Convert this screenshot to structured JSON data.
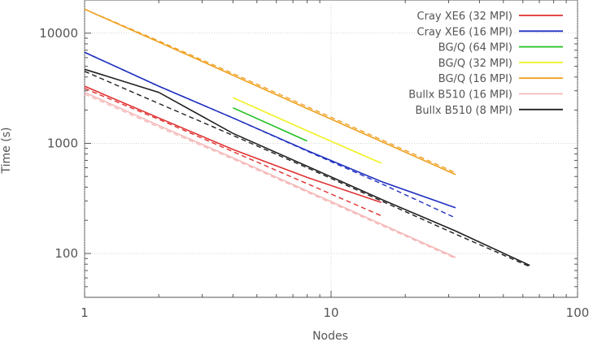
{
  "chart_data": {
    "type": "line",
    "xlabel": "Nodes",
    "ylabel": "Time (s)",
    "xscale": "log",
    "yscale": "log",
    "xlim": [
      1,
      100
    ],
    "ylim": [
      40,
      20000
    ],
    "xticks": [
      {
        "value": 1,
        "label": "1"
      },
      {
        "value": 10,
        "label": "10"
      },
      {
        "value": 100,
        "label": "100"
      }
    ],
    "yticks": [
      {
        "value": 100,
        "label": "100"
      },
      {
        "value": 1000,
        "label": "1000"
      },
      {
        "value": 10000,
        "label": "10000"
      }
    ],
    "grid": true,
    "legend_position": "top-right",
    "series": [
      {
        "name": "Cray XE6 (32 MPI)",
        "color": "#e03030",
        "x": [
          1,
          2,
          4,
          8,
          16
        ],
        "y": [
          3300,
          1700,
          880,
          490,
          290
        ],
        "dashed_y": [
          3150,
          1650,
          840,
          430,
          220
        ]
      },
      {
        "name": "Cray XE6 (16 MPI)",
        "color": "#2030c0",
        "x": [
          1,
          2,
          4,
          8,
          16,
          32
        ],
        "y": [
          6700,
          3300,
          1700,
          860,
          450,
          260
        ],
        "dashed_y": [
          6700,
          3300,
          1700,
          850,
          430,
          210
        ]
      },
      {
        "name": "BG/Q (64 MPI)",
        "color": "#20c020",
        "x": [
          4,
          8
        ],
        "y": [
          2100,
          1050
        ],
        "dashed_y": []
      },
      {
        "name": "BG/Q (32 MPI)",
        "color": "#f0f020",
        "x": [
          4,
          8,
          16
        ],
        "y": [
          2600,
          1300,
          660
        ],
        "dashed_y": []
      },
      {
        "name": "BG/Q (16 MPI)",
        "color": "#f0a020",
        "x": [
          1,
          2,
          4,
          8,
          16,
          32
        ],
        "y": [
          16500,
          8300,
          4150,
          2070,
          1040,
          520
        ],
        "dashed_y": [
          16500,
          8500,
          4300,
          2150,
          1080,
          540
        ]
      },
      {
        "name": "Bullx B510 (16 MPI)",
        "color": "#f5b8b8",
        "x": [
          1,
          2,
          4,
          8,
          16,
          32
        ],
        "y": [
          2900,
          1450,
          740,
          370,
          185,
          92
        ],
        "dashed_y": [
          2800,
          1400,
          720,
          360,
          180,
          90
        ]
      },
      {
        "name": "Bullx B510 (8 MPI)",
        "color": "#202020",
        "x": [
          1,
          2,
          4,
          8,
          16,
          32,
          64
        ],
        "y": [
          4700,
          2900,
          1230,
          620,
          310,
          160,
          78
        ],
        "dashed_y": [
          4500,
          2300,
          1180,
          600,
          300,
          150,
          76
        ]
      }
    ]
  }
}
